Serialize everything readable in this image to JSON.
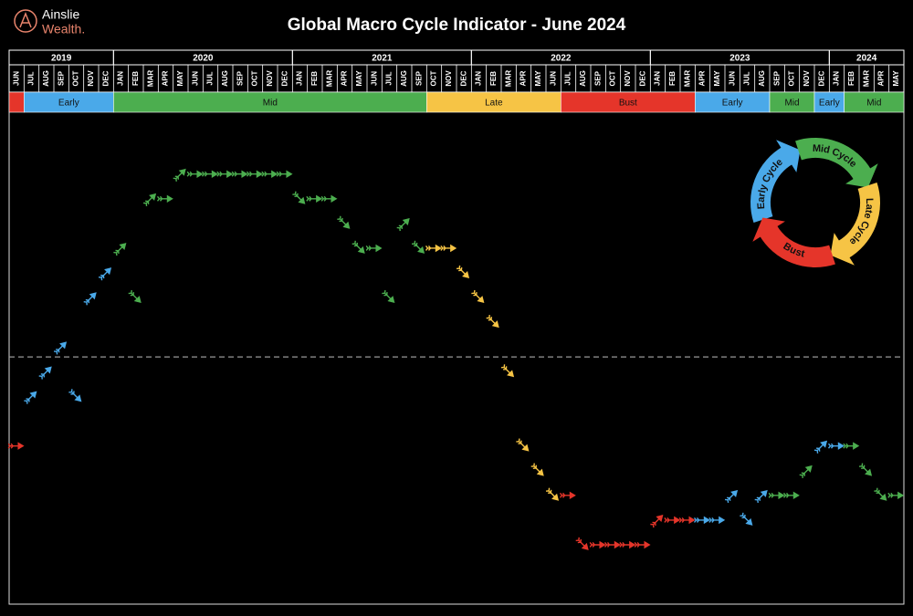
{
  "header": {
    "logo": {
      "line1": "Ainslie",
      "line2": "Wealth."
    }
  },
  "chart_data": {
    "type": "cycle-arrows",
    "title": "Global Macro Cycle Indicator - June 2024",
    "years": [
      {
        "label": "2019",
        "span": 7
      },
      {
        "label": "2020",
        "span": 12
      },
      {
        "label": "2021",
        "span": 12
      },
      {
        "label": "2022",
        "span": 12
      },
      {
        "label": "2023",
        "span": 12
      },
      {
        "label": "2024",
        "span": 5
      }
    ],
    "categories": [
      "JUN",
      "JUL",
      "AUG",
      "SEP",
      "OCT",
      "NOV",
      "DEC",
      "JAN",
      "FEB",
      "MAR",
      "APR",
      "MAY",
      "JUN",
      "JUL",
      "AUG",
      "SEP",
      "OCT",
      "NOV",
      "DEC",
      "JAN",
      "FEB",
      "MAR",
      "APR",
      "MAY",
      "JUN",
      "JUL",
      "AUG",
      "SEP",
      "OCT",
      "NOV",
      "DEC",
      "JAN",
      "FEB",
      "MAR",
      "APR",
      "MAY",
      "JUN",
      "JUL",
      "AUG",
      "SEP",
      "OCT",
      "NOV",
      "DEC",
      "JAN",
      "FEB",
      "MAR",
      "APR",
      "MAY",
      "JUN",
      "JUL",
      "AUG",
      "SEP",
      "OCT",
      "NOV",
      "DEC",
      "JAN",
      "FEB",
      "MAR",
      "APR",
      "MAY"
    ],
    "phases": [
      {
        "label": null,
        "color": "#e5352a",
        "span": 1
      },
      {
        "label": "Early",
        "color": "#4aa9e9",
        "span": 6
      },
      {
        "label": "Mid",
        "color": "#4cae4f",
        "span": 21
      },
      {
        "label": "Late",
        "color": "#f6c445",
        "span": 9
      },
      {
        "label": "Bust",
        "color": "#e5352a",
        "span": 9
      },
      {
        "label": "Early",
        "color": "#4aa9e9",
        "span": 5
      },
      {
        "label": "Mid",
        "color": "#4cae4f",
        "span": 3
      },
      {
        "label": "Early",
        "color": "#4aa9e9",
        "span": 2
      },
      {
        "label": "Mid",
        "color": "#4cae4f",
        "span": 4
      }
    ],
    "values": [
      4,
      6,
      7,
      8,
      6,
      10,
      11,
      12,
      10,
      14,
      14,
      15,
      15,
      15,
      15,
      15,
      15,
      15,
      15,
      14,
      14,
      14,
      13,
      12,
      12,
      10,
      13,
      12,
      12,
      12,
      11,
      10,
      9,
      7,
      4,
      3,
      2,
      2,
      0,
      0,
      0,
      0,
      0,
      1,
      1,
      1,
      1,
      1,
      2,
      1,
      2,
      2,
      2,
      3,
      4,
      4,
      4,
      3,
      2,
      2
    ],
    "ylim": [
      -2.4,
      17.5
    ],
    "midline": 7.6,
    "legend": [
      {
        "name": "Early Cycle",
        "color": "#4aa9e9"
      },
      {
        "name": "Mid Cycle",
        "color": "#4cae4f"
      },
      {
        "name": "Late Cycle",
        "color": "#f6c445"
      },
      {
        "name": "Bust",
        "color": "#e5352a"
      }
    ]
  }
}
